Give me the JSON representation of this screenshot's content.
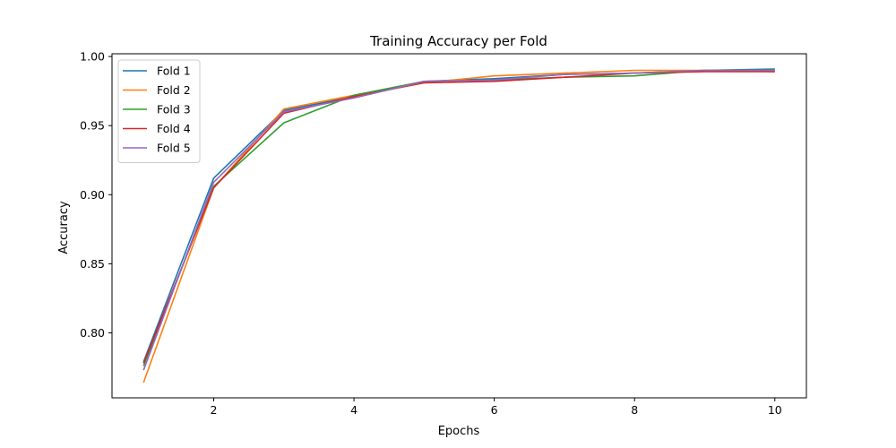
{
  "chart_data": {
    "type": "line",
    "title": "Training Accuracy per Fold",
    "xlabel": "Epochs",
    "ylabel": "Accuracy",
    "xlim": [
      0.55,
      10.45
    ],
    "ylim": [
      0.753,
      1.002
    ],
    "xticks": [
      2,
      4,
      6,
      8,
      10
    ],
    "yticks": [
      0.8,
      0.85,
      0.9,
      0.95,
      1.0
    ],
    "grid": false,
    "legend_position": "top-left",
    "x": [
      1,
      2,
      3,
      4,
      5,
      6,
      7,
      8,
      9,
      10
    ],
    "series": [
      {
        "name": "Fold 1",
        "color": "#1f77b4",
        "values": [
          0.779,
          0.912,
          0.961,
          0.971,
          0.982,
          0.984,
          0.987,
          0.988,
          0.99,
          0.991
        ]
      },
      {
        "name": "Fold 2",
        "color": "#ff7f0e",
        "values": [
          0.764,
          0.905,
          0.962,
          0.972,
          0.981,
          0.986,
          0.988,
          0.99,
          0.99,
          0.989
        ]
      },
      {
        "name": "Fold 3",
        "color": "#2ca02c",
        "values": [
          0.776,
          0.906,
          0.952,
          0.972,
          0.982,
          0.983,
          0.985,
          0.986,
          0.99,
          0.99
        ]
      },
      {
        "name": "Fold 4",
        "color": "#d62728",
        "values": [
          0.778,
          0.905,
          0.959,
          0.971,
          0.981,
          0.982,
          0.985,
          0.988,
          0.989,
          0.989
        ]
      },
      {
        "name": "Fold 5",
        "color": "#9467bd",
        "values": [
          0.773,
          0.909,
          0.96,
          0.97,
          0.982,
          0.983,
          0.987,
          0.988,
          0.99,
          0.99
        ]
      }
    ]
  }
}
